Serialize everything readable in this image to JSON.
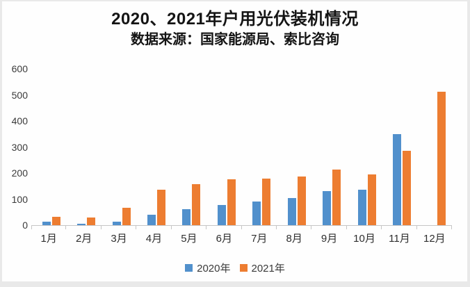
{
  "header": {
    "title": "2020、2021年户用光伏装机情况",
    "subtitle": "数据来源：国家能源局、索比咨询"
  },
  "chart_data": {
    "type": "bar",
    "title": "2020、2021年户用光伏装机情况",
    "subtitle": "数据来源：国家能源局、索比咨询",
    "categories": [
      "1月",
      "2月",
      "3月",
      "4月",
      "5月",
      "6月",
      "7月",
      "8月",
      "9月",
      "10月",
      "11月",
      "12月"
    ],
    "series": [
      {
        "name": "2020年",
        "color": "#5190cc",
        "values": [
          14,
          5,
          14,
          40,
          62,
          78,
          91,
          103,
          130,
          136,
          349,
          0
        ]
      },
      {
        "name": "2021年",
        "color": "#ed7d31",
        "values": [
          33,
          30,
          68,
          136,
          158,
          176,
          178,
          186,
          214,
          195,
          285,
          511
        ]
      }
    ],
    "xlabel": "",
    "ylabel": "",
    "ylim": [
      0,
      600
    ],
    "yticks": [
      0,
      100,
      200,
      300,
      400,
      500,
      600
    ],
    "grid": false,
    "legend_position": "bottom"
  },
  "colors": {
    "series_2020": "#5190cc",
    "series_2021": "#ed7d31",
    "axis_line": "#c6c6c6",
    "text_dark": "#141414",
    "text_axis": "#3a3a3a",
    "frame_border": "#e9e9e9",
    "background": "#fefefe"
  }
}
